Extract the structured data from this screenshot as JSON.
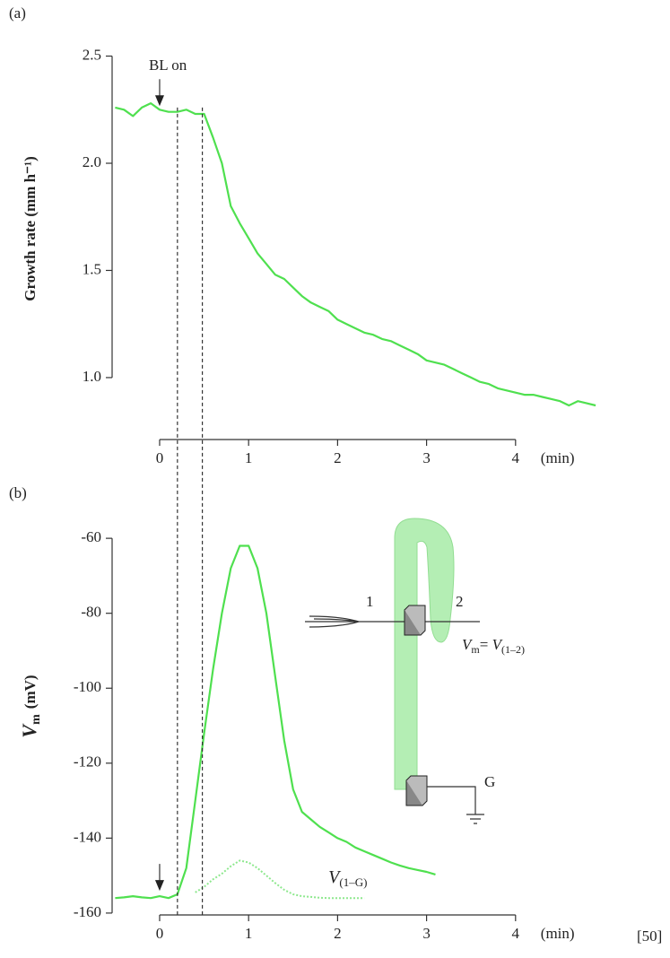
{
  "chart_data": [
    {
      "type": "line",
      "panel_label": "(a)",
      "y_label": "Growth rate (mm h⁻¹)",
      "x_unit": "(min)",
      "annotation": "BL on",
      "annotation_x": 0,
      "x": [
        -0.5,
        -0.4,
        -0.3,
        -0.2,
        -0.1,
        0,
        0.1,
        0.2,
        0.3,
        0.4,
        0.5,
        0.6,
        0.7,
        0.8,
        0.9,
        1.0,
        1.1,
        1.2,
        1.3,
        1.4,
        1.5,
        1.6,
        1.7,
        1.8,
        1.9,
        2.0,
        2.1,
        2.2,
        2.3,
        2.4,
        2.5,
        2.6,
        2.7,
        2.8,
        2.9,
        3.0,
        3.1,
        3.2,
        3.3,
        3.4,
        3.5,
        3.6,
        3.7,
        3.8,
        3.9,
        4.0,
        4.1,
        4.2,
        4.3,
        4.4,
        4.5,
        4.6,
        4.7,
        4.8,
        4.9
      ],
      "series": [
        {
          "color": "#4fe04f",
          "values": [
            2.26,
            2.25,
            2.22,
            2.26,
            2.28,
            2.25,
            2.24,
            2.24,
            2.25,
            2.23,
            2.23,
            2.12,
            2.0,
            1.8,
            1.72,
            1.65,
            1.58,
            1.53,
            1.48,
            1.46,
            1.42,
            1.38,
            1.35,
            1.33,
            1.31,
            1.27,
            1.25,
            1.23,
            1.21,
            1.2,
            1.18,
            1.17,
            1.15,
            1.13,
            1.11,
            1.08,
            1.07,
            1.06,
            1.04,
            1.02,
            1.0,
            0.98,
            0.97,
            0.95,
            0.94,
            0.93,
            0.92,
            0.92,
            0.91,
            0.9,
            0.89,
            0.87,
            0.89,
            0.88,
            0.87
          ]
        }
      ],
      "xlim": [
        -0.534,
        5.383
      ],
      "ylim": [
        0.711,
        2.678
      ],
      "xticks": [
        0,
        1,
        2,
        3,
        4
      ],
      "yticks": [
        {
          "value": 1.0,
          "label": "1.0"
        },
        1.5,
        {
          "value": 2.0,
          "label": "2.0"
        },
        2.5
      ],
      "marker_lines_x": [
        0.2,
        0.48
      ]
    },
    {
      "type": "line",
      "panel_label": "(b)",
      "y_label": {
        "symbol": "V",
        "subscript": "m",
        "unit": "(mV)"
      },
      "x_unit": "(min)",
      "annotation_x": 0,
      "x": [
        -0.5,
        -0.4,
        -0.3,
        -0.2,
        -0.1,
        0,
        0.1,
        0.2,
        0.3,
        0.4,
        0.5,
        0.6,
        0.7,
        0.8,
        0.9,
        1.0,
        1.1,
        1.2,
        1.3,
        1.4,
        1.5,
        1.6,
        1.7,
        1.8,
        1.9,
        2.0,
        2.1,
        2.2,
        2.3,
        2.4,
        2.5,
        2.6,
        2.7,
        2.8,
        2.9,
        3.0,
        3.1
      ],
      "series": [
        {
          "color": "#4fe04f",
          "style": "solid",
          "values": [
            -156,
            -155.8,
            -155.5,
            -155.8,
            -156,
            -155.5,
            -156,
            -155,
            -148,
            -130,
            -112,
            -95,
            -80,
            -68,
            -62,
            -62,
            -68,
            -80,
            -97,
            -114,
            -127,
            -133,
            -135,
            -137,
            -138.5,
            -140,
            -141,
            -142.5,
            -143.5,
            -144.5,
            -145.5,
            -146.5,
            -147.3,
            -148,
            -148.5,
            -149,
            -149.7
          ]
        },
        {
          "color": "#8ee88e",
          "style": "dotted",
          "label": {
            "symbol": "V",
            "subscript": "(1–G)"
          },
          "values": [
            null,
            null,
            null,
            null,
            null,
            null,
            null,
            null,
            null,
            -154.5,
            -153,
            -151,
            -149.5,
            -147.5,
            -146,
            -146.5,
            -148,
            -150,
            -152,
            -153.8,
            -155,
            -155.5,
            -155.7,
            -155.9,
            -156,
            -156,
            -156,
            -156,
            -156,
            null,
            null,
            null,
            null,
            null,
            null,
            null,
            null
          ]
        }
      ],
      "xlim": [
        -0.534,
        5.383
      ],
      "ylim": [
        -160.5,
        -49.2
      ],
      "xticks": [
        0,
        1,
        2,
        3,
        4
      ],
      "yticks": [
        -160,
        -140,
        -120,
        -100,
        -80,
        -60
      ],
      "inset": {
        "electrode_labels": [
          "1",
          "2",
          "G"
        ],
        "equation": {
          "lhs": "V",
          "lhs_sub": "m",
          "eq": "= ",
          "rhs": "V",
          "rhs_sub": "(1–2)"
        }
      }
    }
  ],
  "source": "[50]"
}
